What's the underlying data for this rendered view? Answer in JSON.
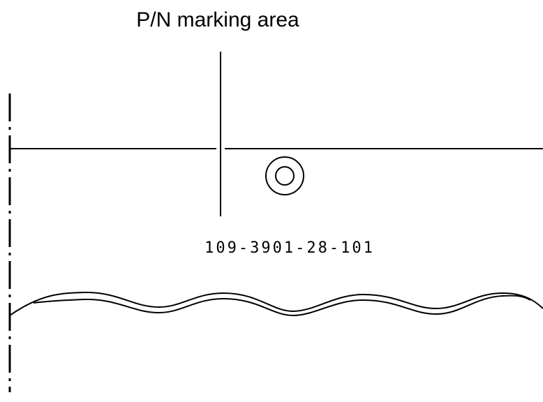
{
  "title": "P/N marking area",
  "part_number": "109-3901-28-101"
}
